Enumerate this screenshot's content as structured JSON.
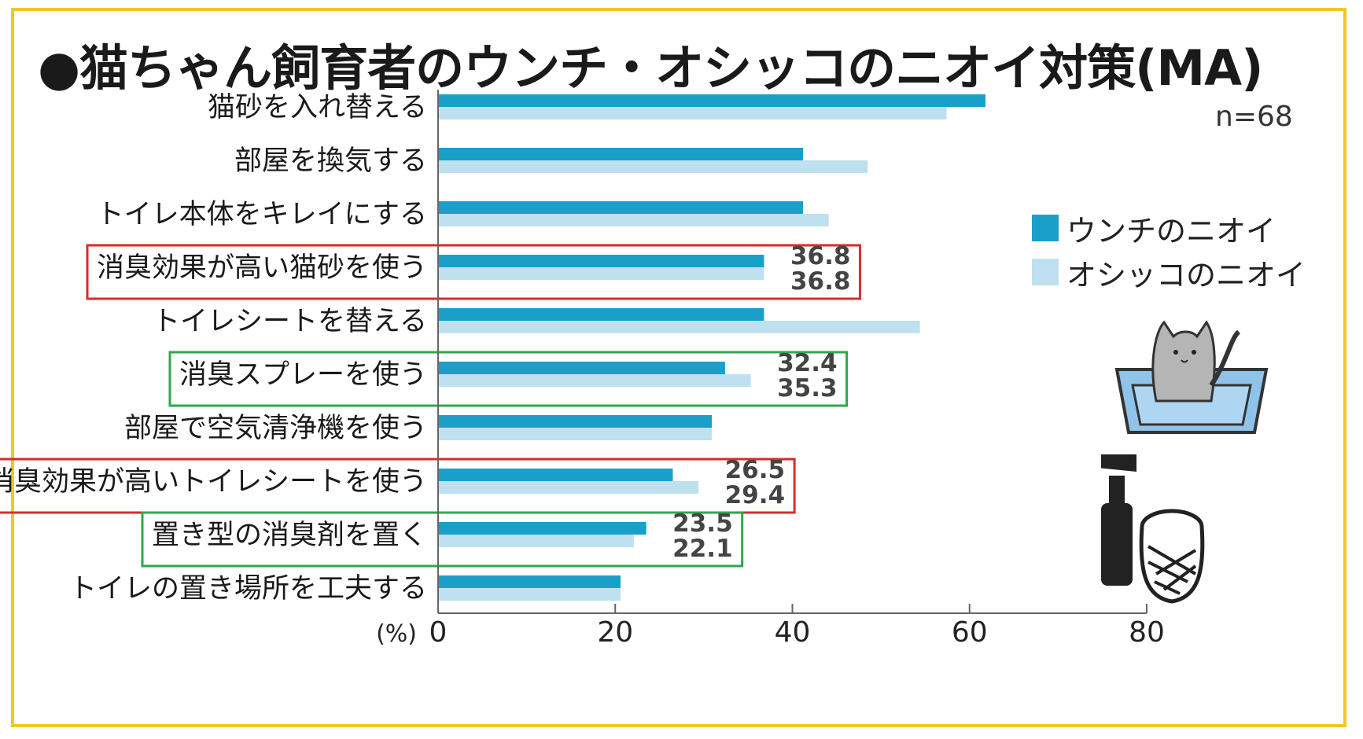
{
  "title": "●猫ちゃん飼育者のウンチ・オシッコのニオイ対策(MA)",
  "sample_size": "n=68",
  "unit_label": "(%)",
  "colors": {
    "series1": "#1aa0c8",
    "series2": "#bfe0ee",
    "frame": "#f2c81e",
    "highlight_red": "#d92b2b",
    "highlight_green": "#2ea84c"
  },
  "legend": [
    {
      "label": "ウンチのニオイ"
    },
    {
      "label": "オシッコのニオイ"
    }
  ],
  "chart_data": {
    "type": "bar",
    "orientation": "horizontal",
    "title": "●猫ちゃん飼育者のウンチ・オシッコのニオイ対策(MA)",
    "xlabel": "(%)",
    "xlim": [
      0,
      80
    ],
    "ticks": [
      0,
      20,
      40,
      60,
      80
    ],
    "categories": [
      "猫砂を入れ替える",
      "部屋を換気する",
      "トイレ本体をキレイにする",
      "消臭効果が高い猫砂を使う",
      "トイレシートを替える",
      "消臭スプレーを使う",
      "部屋で空気清浄機を使う",
      "消臭効果が高いトイレシートを使う",
      "置き型の消臭剤を置く",
      "トイレの置き場所を工夫する"
    ],
    "series": [
      {
        "name": "ウンチのニオイ",
        "values": [
          61.8,
          41.2,
          41.2,
          36.8,
          36.8,
          32.4,
          30.9,
          26.5,
          23.5,
          20.6
        ]
      },
      {
        "name": "オシッコのニオイ",
        "values": [
          57.4,
          48.5,
          44.1,
          36.8,
          54.4,
          35.3,
          30.9,
          29.4,
          22.1,
          20.6
        ]
      }
    ],
    "data_labels": [
      {
        "index": 3,
        "values": [
          "36.8",
          "36.8"
        ],
        "highlight": "red"
      },
      {
        "index": 5,
        "values": [
          "32.4",
          "35.3"
        ],
        "highlight": "green"
      },
      {
        "index": 7,
        "values": [
          "26.5",
          "29.4"
        ],
        "highlight": "red"
      },
      {
        "index": 8,
        "values": [
          "23.5",
          "22.1"
        ],
        "highlight": "green"
      }
    ]
  }
}
